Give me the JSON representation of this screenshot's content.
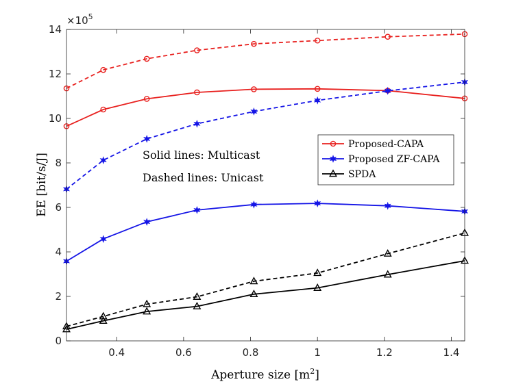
{
  "chart_data": {
    "type": "line",
    "xlabel": "Aperture size [m",
    "xlabel_sup": "2",
    "xlabel_close": "]",
    "ylabel": "EE [bit/s/J]",
    "exponent_base": "×10",
    "exponent_power": "5",
    "xlim": [
      0.25,
      1.44
    ],
    "ylim": [
      0,
      14
    ],
    "xticks": [
      0.4,
      0.6,
      0.8,
      1,
      1.2,
      1.4
    ],
    "xtick_labels": [
      "0.4",
      "0.6",
      "0.8",
      "1",
      "1.2",
      "1.4"
    ],
    "yticks": [
      0,
      2,
      4,
      6,
      8,
      10,
      12,
      14
    ],
    "ytick_labels": [
      "0",
      "2",
      "4",
      "6",
      "8",
      "10",
      "12",
      "14"
    ],
    "x": [
      0.25,
      0.36,
      0.49,
      0.64,
      0.81,
      1.0,
      1.21,
      1.44
    ],
    "annotations": [
      "Solid lines: Multicast",
      "Dashed lines: Unicast"
    ],
    "legend": [
      {
        "label": "Proposed-CAPA",
        "color": "#e8201e",
        "marker": "circle"
      },
      {
        "label": "Proposed ZF-CAPA",
        "color": "#1414e6",
        "marker": "star"
      },
      {
        "label": "SPDA",
        "color": "#000000",
        "marker": "triangle"
      }
    ],
    "series": [
      {
        "name": "Proposed-CAPA Multicast",
        "color": "#e8201e",
        "marker": "circle",
        "dash": false,
        "values": [
          9.65,
          10.4,
          10.88,
          11.17,
          11.31,
          11.33,
          11.25,
          10.9
        ]
      },
      {
        "name": "Proposed-CAPA Unicast",
        "color": "#e8201e",
        "marker": "circle",
        "dash": true,
        "values": [
          11.35,
          12.18,
          12.68,
          13.06,
          13.35,
          13.5,
          13.67,
          13.79
        ]
      },
      {
        "name": "Proposed ZF-CAPA Multicast",
        "color": "#1414e6",
        "marker": "star",
        "dash": false,
        "values": [
          3.58,
          4.58,
          5.35,
          5.88,
          6.13,
          6.18,
          6.07,
          5.82
        ]
      },
      {
        "name": "Proposed ZF-CAPA Unicast",
        "color": "#1414e6",
        "marker": "star",
        "dash": true,
        "values": [
          6.82,
          8.12,
          9.08,
          9.76,
          10.31,
          10.81,
          11.24,
          11.63
        ]
      },
      {
        "name": "SPDA Multicast",
        "color": "#000000",
        "marker": "triangle",
        "dash": false,
        "values": [
          0.52,
          0.9,
          1.32,
          1.55,
          2.1,
          2.38,
          2.98,
          3.6
        ]
      },
      {
        "name": "SPDA Unicast",
        "color": "#000000",
        "marker": "triangle",
        "dash": true,
        "values": [
          0.65,
          1.1,
          1.65,
          1.98,
          2.68,
          3.05,
          3.92,
          4.85
        ]
      }
    ]
  }
}
